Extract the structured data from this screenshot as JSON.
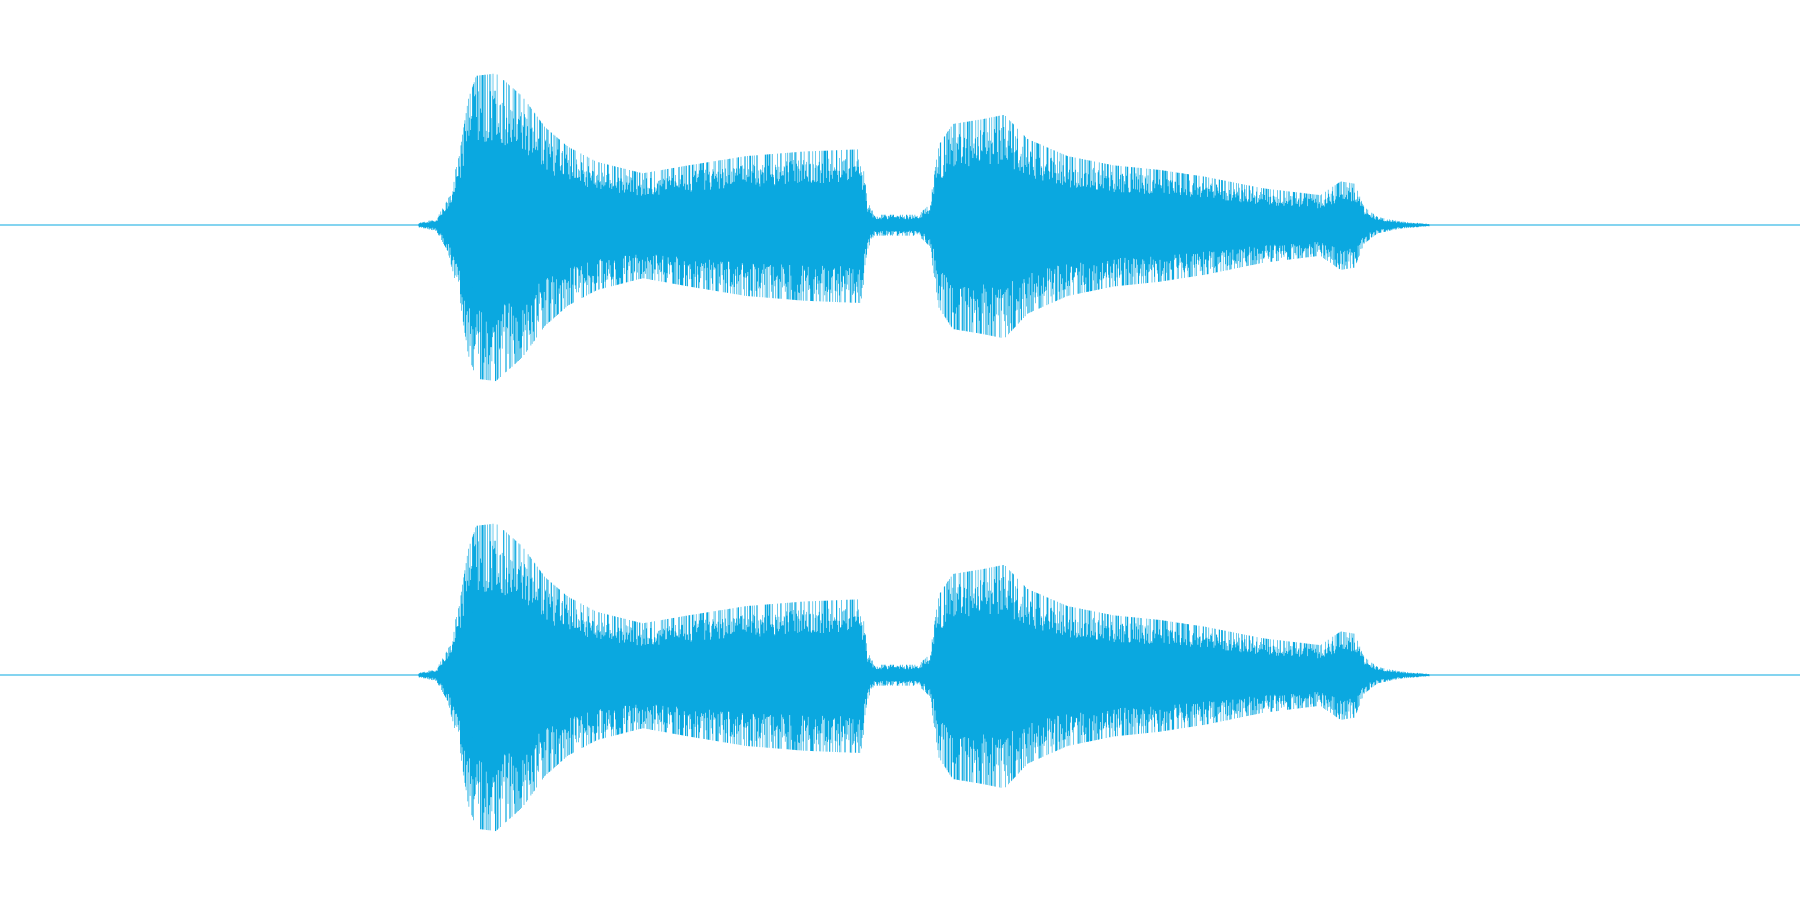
{
  "waveform": {
    "channels": 2,
    "color": "#0aa8e0"
  }
}
